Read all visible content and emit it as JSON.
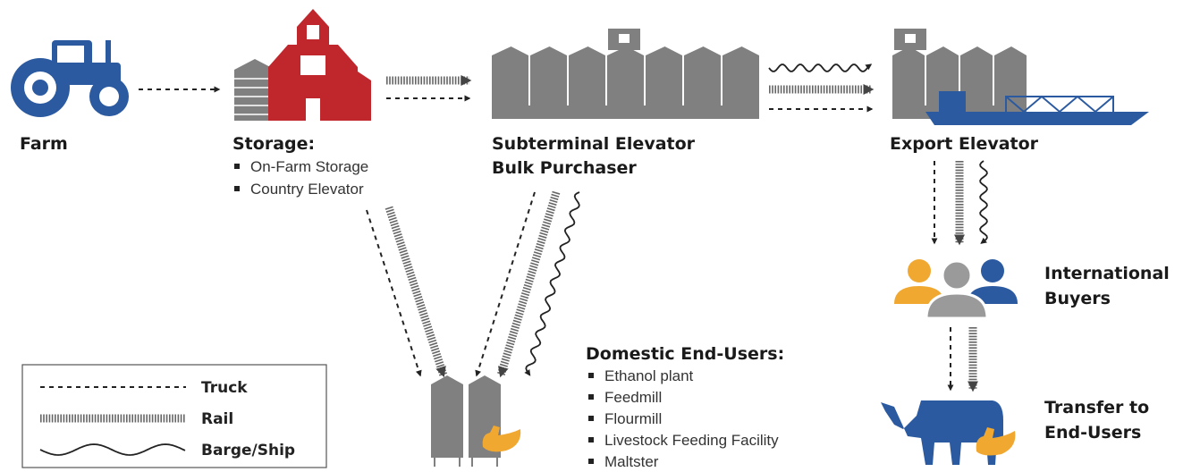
{
  "nodes": {
    "farm": {
      "title": [
        "Farm"
      ]
    },
    "storage": {
      "title": [
        "Storage:"
      ],
      "items": [
        "On-Farm Storage",
        "Country Elevator"
      ]
    },
    "subterminal": {
      "title": [
        "Subterminal Elevator",
        "Bulk Purchaser"
      ]
    },
    "export": {
      "title": [
        "Export Elevator"
      ]
    },
    "international": {
      "title": [
        "International",
        "Buyers"
      ]
    },
    "domestic": {
      "title": [
        "Domestic End-Users:"
      ],
      "items": [
        "Ethanol plant",
        "Feedmill",
        "Flourmill",
        "Livestock Feeding Facility",
        "Maltster"
      ]
    },
    "transfer": {
      "title": [
        "Transfer to",
        "End-Users"
      ]
    }
  },
  "legend": [
    "Truck",
    "Rail",
    "Barge/Ship"
  ]
}
